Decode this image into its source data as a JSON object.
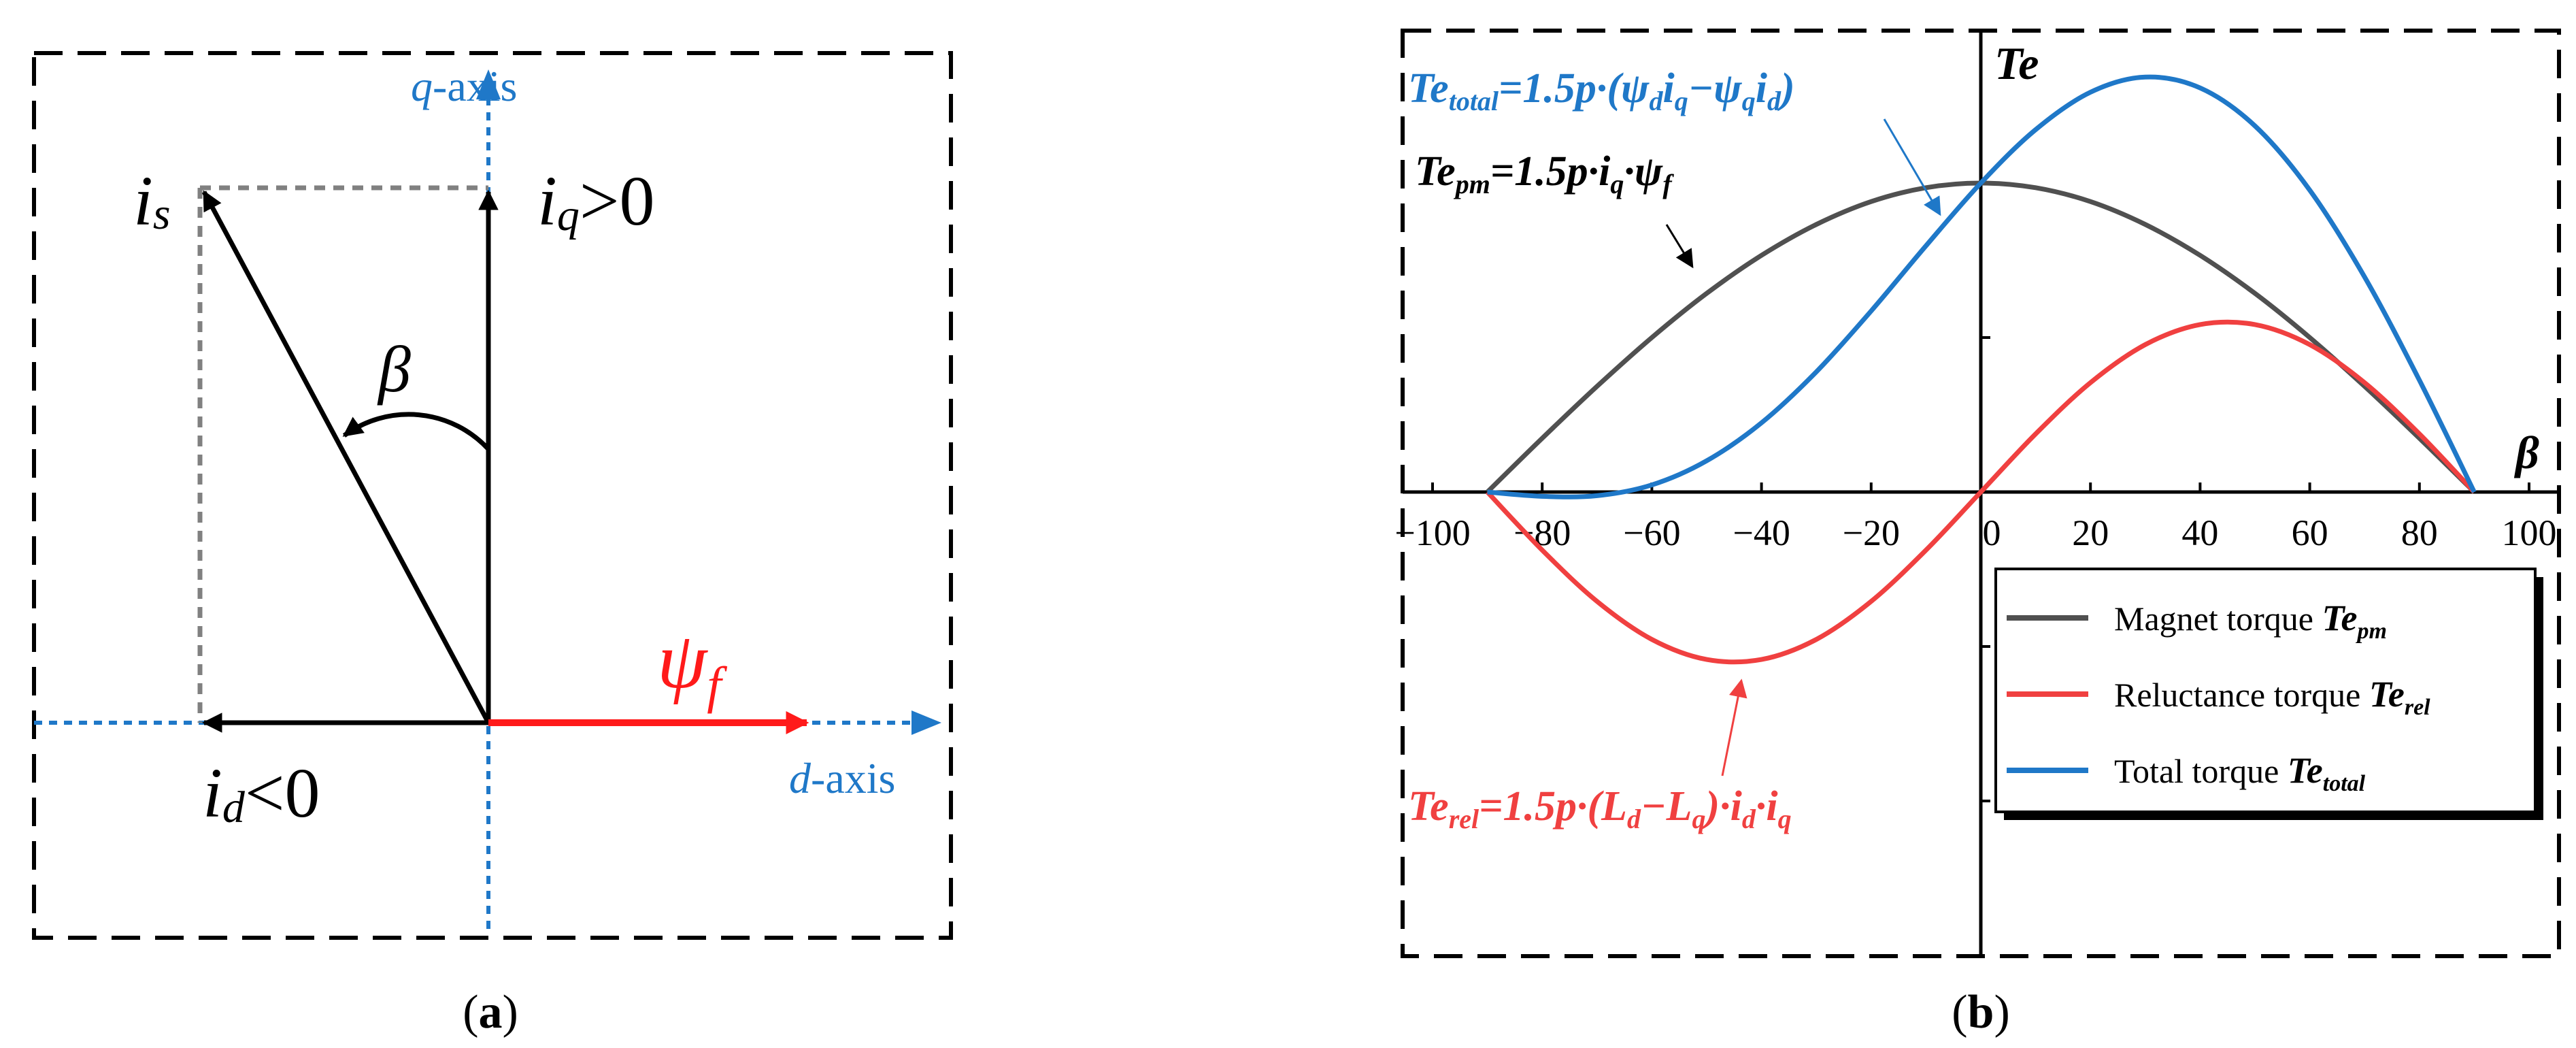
{
  "panel_a": {
    "caption": "(a)",
    "caption_letter": "a",
    "q_axis": {
      "var": "q",
      "suffix": "-axis"
    },
    "d_axis": {
      "var": "d",
      "suffix": "-axis"
    },
    "is_label": {
      "base": "i",
      "sub": "s"
    },
    "iq_label": {
      "base": "i",
      "sub": "q",
      "rel": ">0"
    },
    "id_label": {
      "base": "i",
      "sub": "d",
      "rel": "<0"
    },
    "beta_label": "β",
    "psi_label": {
      "base": "ψ",
      "sub": "f"
    },
    "colors": {
      "axis": "#1f78c8",
      "vector": "#000000",
      "psi": "#ff1a1a",
      "dashed": "#808080"
    }
  },
  "panel_b": {
    "caption": "(b)",
    "caption_letter": "b",
    "formula_total": {
      "t1": "Te",
      "s1": "total",
      "t2": "=1.5",
      "t3": "p",
      "t4": "·(",
      "t5": "ψ",
      "s5": "d",
      "t6": "i",
      "s6": "q",
      "t7": "−",
      "t8": "ψ",
      "s8": "q",
      "t9": "i",
      "s9": "d",
      "t10": ")"
    },
    "formula_pm": {
      "t1": "Te",
      "s1": "pm",
      "t2": "=1.5",
      "t3": "p",
      "t4": "·",
      "t5": "i",
      "s5": "q",
      "t6": "·",
      "t7": "ψ",
      "s7": "f"
    },
    "formula_rel": {
      "t1": "Te",
      "s1": "rel",
      "t2": "=1.5",
      "t3": "p",
      "t4": "·(",
      "t5": "L",
      "s5": "d",
      "t6": "−",
      "t7": "L",
      "s7": "q",
      "t8": ")·",
      "t9": "i",
      "s9": "d",
      "t10": "·",
      "t11": "i",
      "s11": "q"
    },
    "colors": {
      "pm": "#505050",
      "rel": "#f04040",
      "total": "#1f78c8"
    }
  },
  "chart_data": {
    "type": "line",
    "xlabel": "β",
    "ylabel": "Te",
    "xlim": [
      -100,
      100
    ],
    "ylim": [
      -1.42,
      1.32
    ],
    "x_ticks": [
      -100,
      -80,
      -60,
      -40,
      -20,
      0,
      20,
      40,
      60,
      80,
      100
    ],
    "y_tick_marks": [
      1.0,
      0.5,
      -0.5,
      -1.0
    ],
    "legend_position": "bottom-right",
    "grid": false,
    "series": [
      {
        "key": "pm",
        "name": "Magnet torque",
        "legend_sym": "Te",
        "legend_sub": "pm",
        "x": [
          -90,
          -80,
          -70,
          -60,
          -50,
          -40,
          -30,
          -20,
          -10,
          0,
          10,
          20,
          30,
          40,
          50,
          60,
          70,
          80,
          90
        ],
        "values": [
          0.0,
          0.174,
          0.342,
          0.5,
          0.643,
          0.766,
          0.866,
          0.94,
          0.985,
          1.0,
          0.985,
          0.94,
          0.866,
          0.766,
          0.643,
          0.5,
          0.342,
          0.174,
          0.0
        ]
      },
      {
        "key": "rel",
        "name": "Reluctance torque",
        "legend_sym": "Te",
        "legend_sub": "rel",
        "x": [
          -90,
          -80,
          -70,
          -60,
          -50,
          -40,
          -30,
          -20,
          -10,
          0,
          10,
          20,
          30,
          40,
          50,
          60,
          70,
          80,
          90
        ],
        "values": [
          0.0,
          -0.188,
          -0.354,
          -0.477,
          -0.542,
          -0.542,
          -0.477,
          -0.354,
          -0.188,
          0.0,
          0.188,
          0.354,
          0.477,
          0.542,
          0.542,
          0.477,
          0.354,
          0.188,
          0.0
        ]
      },
      {
        "key": "total",
        "name": "Total torque",
        "legend_sym": "Te",
        "legend_sub": "total",
        "x": [
          -90,
          -80,
          -70,
          -60,
          -50,
          -40,
          -30,
          -20,
          -10,
          0,
          10,
          20,
          30,
          40,
          50,
          60,
          70,
          80,
          90
        ],
        "values": [
          0.0,
          -0.014,
          -0.012,
          0.023,
          0.101,
          0.224,
          0.389,
          0.586,
          0.797,
          1.0,
          1.173,
          1.294,
          1.343,
          1.308,
          1.185,
          0.977,
          0.696,
          0.362,
          0.0
        ]
      }
    ]
  }
}
